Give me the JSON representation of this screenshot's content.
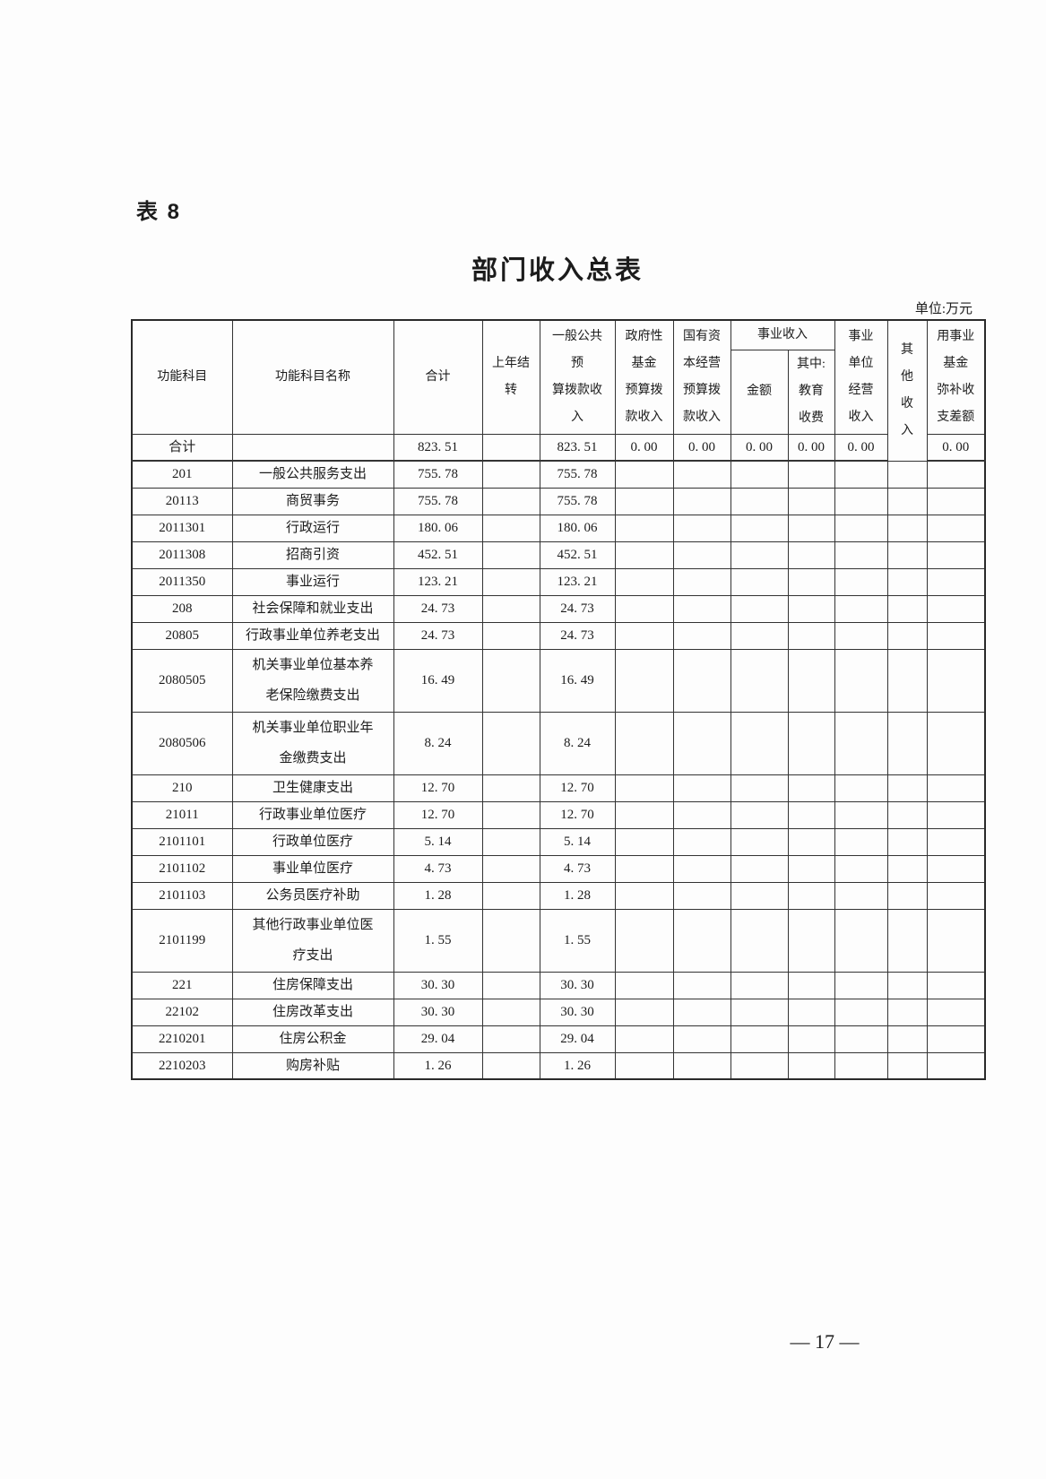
{
  "page": {
    "table_label": "表 8",
    "title": "部门收入总表",
    "unit_note": "单位:万元",
    "page_number": "— 17 —"
  },
  "table": {
    "header": {
      "subject_code": "功能科目",
      "subject_name": "功能科目名称",
      "total": "合计",
      "prev_year_carryover": "上年结\n转",
      "general_public_budget_income": "一般公共\n预\n算拨款收\n入",
      "govt_fund_budget_income": "政府性\n基金\n预算拨\n款收入",
      "state_capital_budget_income": "国有资\n本经营\n预算拨\n款收入",
      "service_income_group": "事业收入",
      "service_income_amount": "金额",
      "service_income_education_fee": "其中:\n教育\n收费",
      "unit_operating_income": "事业\n单位\n经营\n收入",
      "other_income": "其\n他\n收\n入",
      "fund_balance_subsidy": "用事业\n基金\n弥补收\n支差额"
    },
    "rows": [
      {
        "is_total": true,
        "tall": false,
        "cells": [
          "合计",
          "",
          "823. 51",
          "",
          "823. 51",
          "0. 00",
          "0. 00",
          "0. 00",
          "0. 00",
          "0. 00",
          "0. 00"
        ]
      },
      {
        "is_total": false,
        "tall": false,
        "cells": [
          "201",
          "一般公共服务支出",
          "755. 78",
          "",
          "755. 78",
          "",
          "",
          "",
          "",
          "",
          "",
          ""
        ]
      },
      {
        "is_total": false,
        "tall": false,
        "cells": [
          "20113",
          "商贸事务",
          "755. 78",
          "",
          "755. 78",
          "",
          "",
          "",
          "",
          "",
          "",
          ""
        ]
      },
      {
        "is_total": false,
        "tall": false,
        "cells": [
          "2011301",
          "行政运行",
          "180. 06",
          "",
          "180. 06",
          "",
          "",
          "",
          "",
          "",
          "",
          ""
        ]
      },
      {
        "is_total": false,
        "tall": false,
        "cells": [
          "2011308",
          "招商引资",
          "452. 51",
          "",
          "452. 51",
          "",
          "",
          "",
          "",
          "",
          "",
          ""
        ]
      },
      {
        "is_total": false,
        "tall": false,
        "cells": [
          "2011350",
          "事业运行",
          "123. 21",
          "",
          "123. 21",
          "",
          "",
          "",
          "",
          "",
          "",
          ""
        ]
      },
      {
        "is_total": false,
        "tall": false,
        "cells": [
          "208",
          "社会保障和就业支出",
          "24. 73",
          "",
          "24. 73",
          "",
          "",
          "",
          "",
          "",
          "",
          ""
        ]
      },
      {
        "is_total": false,
        "tall": false,
        "cells": [
          "20805",
          "行政事业单位养老支出",
          "24. 73",
          "",
          "24. 73",
          "",
          "",
          "",
          "",
          "",
          "",
          ""
        ]
      },
      {
        "is_total": false,
        "tall": true,
        "cells": [
          "2080505",
          "机关事业单位基本养\n老保险缴费支出",
          "16. 49",
          "",
          "16. 49",
          "",
          "",
          "",
          "",
          "",
          "",
          ""
        ]
      },
      {
        "is_total": false,
        "tall": true,
        "cells": [
          "2080506",
          "机关事业单位职业年\n金缴费支出",
          "8. 24",
          "",
          "8. 24",
          "",
          "",
          "",
          "",
          "",
          "",
          ""
        ]
      },
      {
        "is_total": false,
        "tall": false,
        "cells": [
          "210",
          "卫生健康支出",
          "12. 70",
          "",
          "12. 70",
          "",
          "",
          "",
          "",
          "",
          "",
          ""
        ]
      },
      {
        "is_total": false,
        "tall": false,
        "cells": [
          "21011",
          "行政事业单位医疗",
          "12. 70",
          "",
          "12. 70",
          "",
          "",
          "",
          "",
          "",
          "",
          ""
        ]
      },
      {
        "is_total": false,
        "tall": false,
        "cells": [
          "2101101",
          "行政单位医疗",
          "5. 14",
          "",
          "5. 14",
          "",
          "",
          "",
          "",
          "",
          "",
          ""
        ]
      },
      {
        "is_total": false,
        "tall": false,
        "cells": [
          "2101102",
          "事业单位医疗",
          "4. 73",
          "",
          "4. 73",
          "",
          "",
          "",
          "",
          "",
          "",
          ""
        ]
      },
      {
        "is_total": false,
        "tall": false,
        "cells": [
          "2101103",
          "公务员医疗补助",
          "1. 28",
          "",
          "1. 28",
          "",
          "",
          "",
          "",
          "",
          "",
          ""
        ]
      },
      {
        "is_total": false,
        "tall": true,
        "cells": [
          "2101199",
          "其他行政事业单位医\n疗支出",
          "1. 55",
          "",
          "1. 55",
          "",
          "",
          "",
          "",
          "",
          "",
          ""
        ]
      },
      {
        "is_total": false,
        "tall": false,
        "cells": [
          "221",
          "住房保障支出",
          "30. 30",
          "",
          "30. 30",
          "",
          "",
          "",
          "",
          "",
          "",
          ""
        ]
      },
      {
        "is_total": false,
        "tall": false,
        "cells": [
          "22102",
          "住房改革支出",
          "30. 30",
          "",
          "30. 30",
          "",
          "",
          "",
          "",
          "",
          "",
          ""
        ]
      },
      {
        "is_total": false,
        "tall": false,
        "cells": [
          "2210201",
          "住房公积金",
          "29. 04",
          "",
          "29. 04",
          "",
          "",
          "",
          "",
          "",
          "",
          ""
        ]
      },
      {
        "is_total": false,
        "tall": false,
        "cells": [
          "2210203",
          "购房补贴",
          "1. 26",
          "",
          "1. 26",
          "",
          "",
          "",
          "",
          "",
          "",
          ""
        ]
      }
    ]
  }
}
